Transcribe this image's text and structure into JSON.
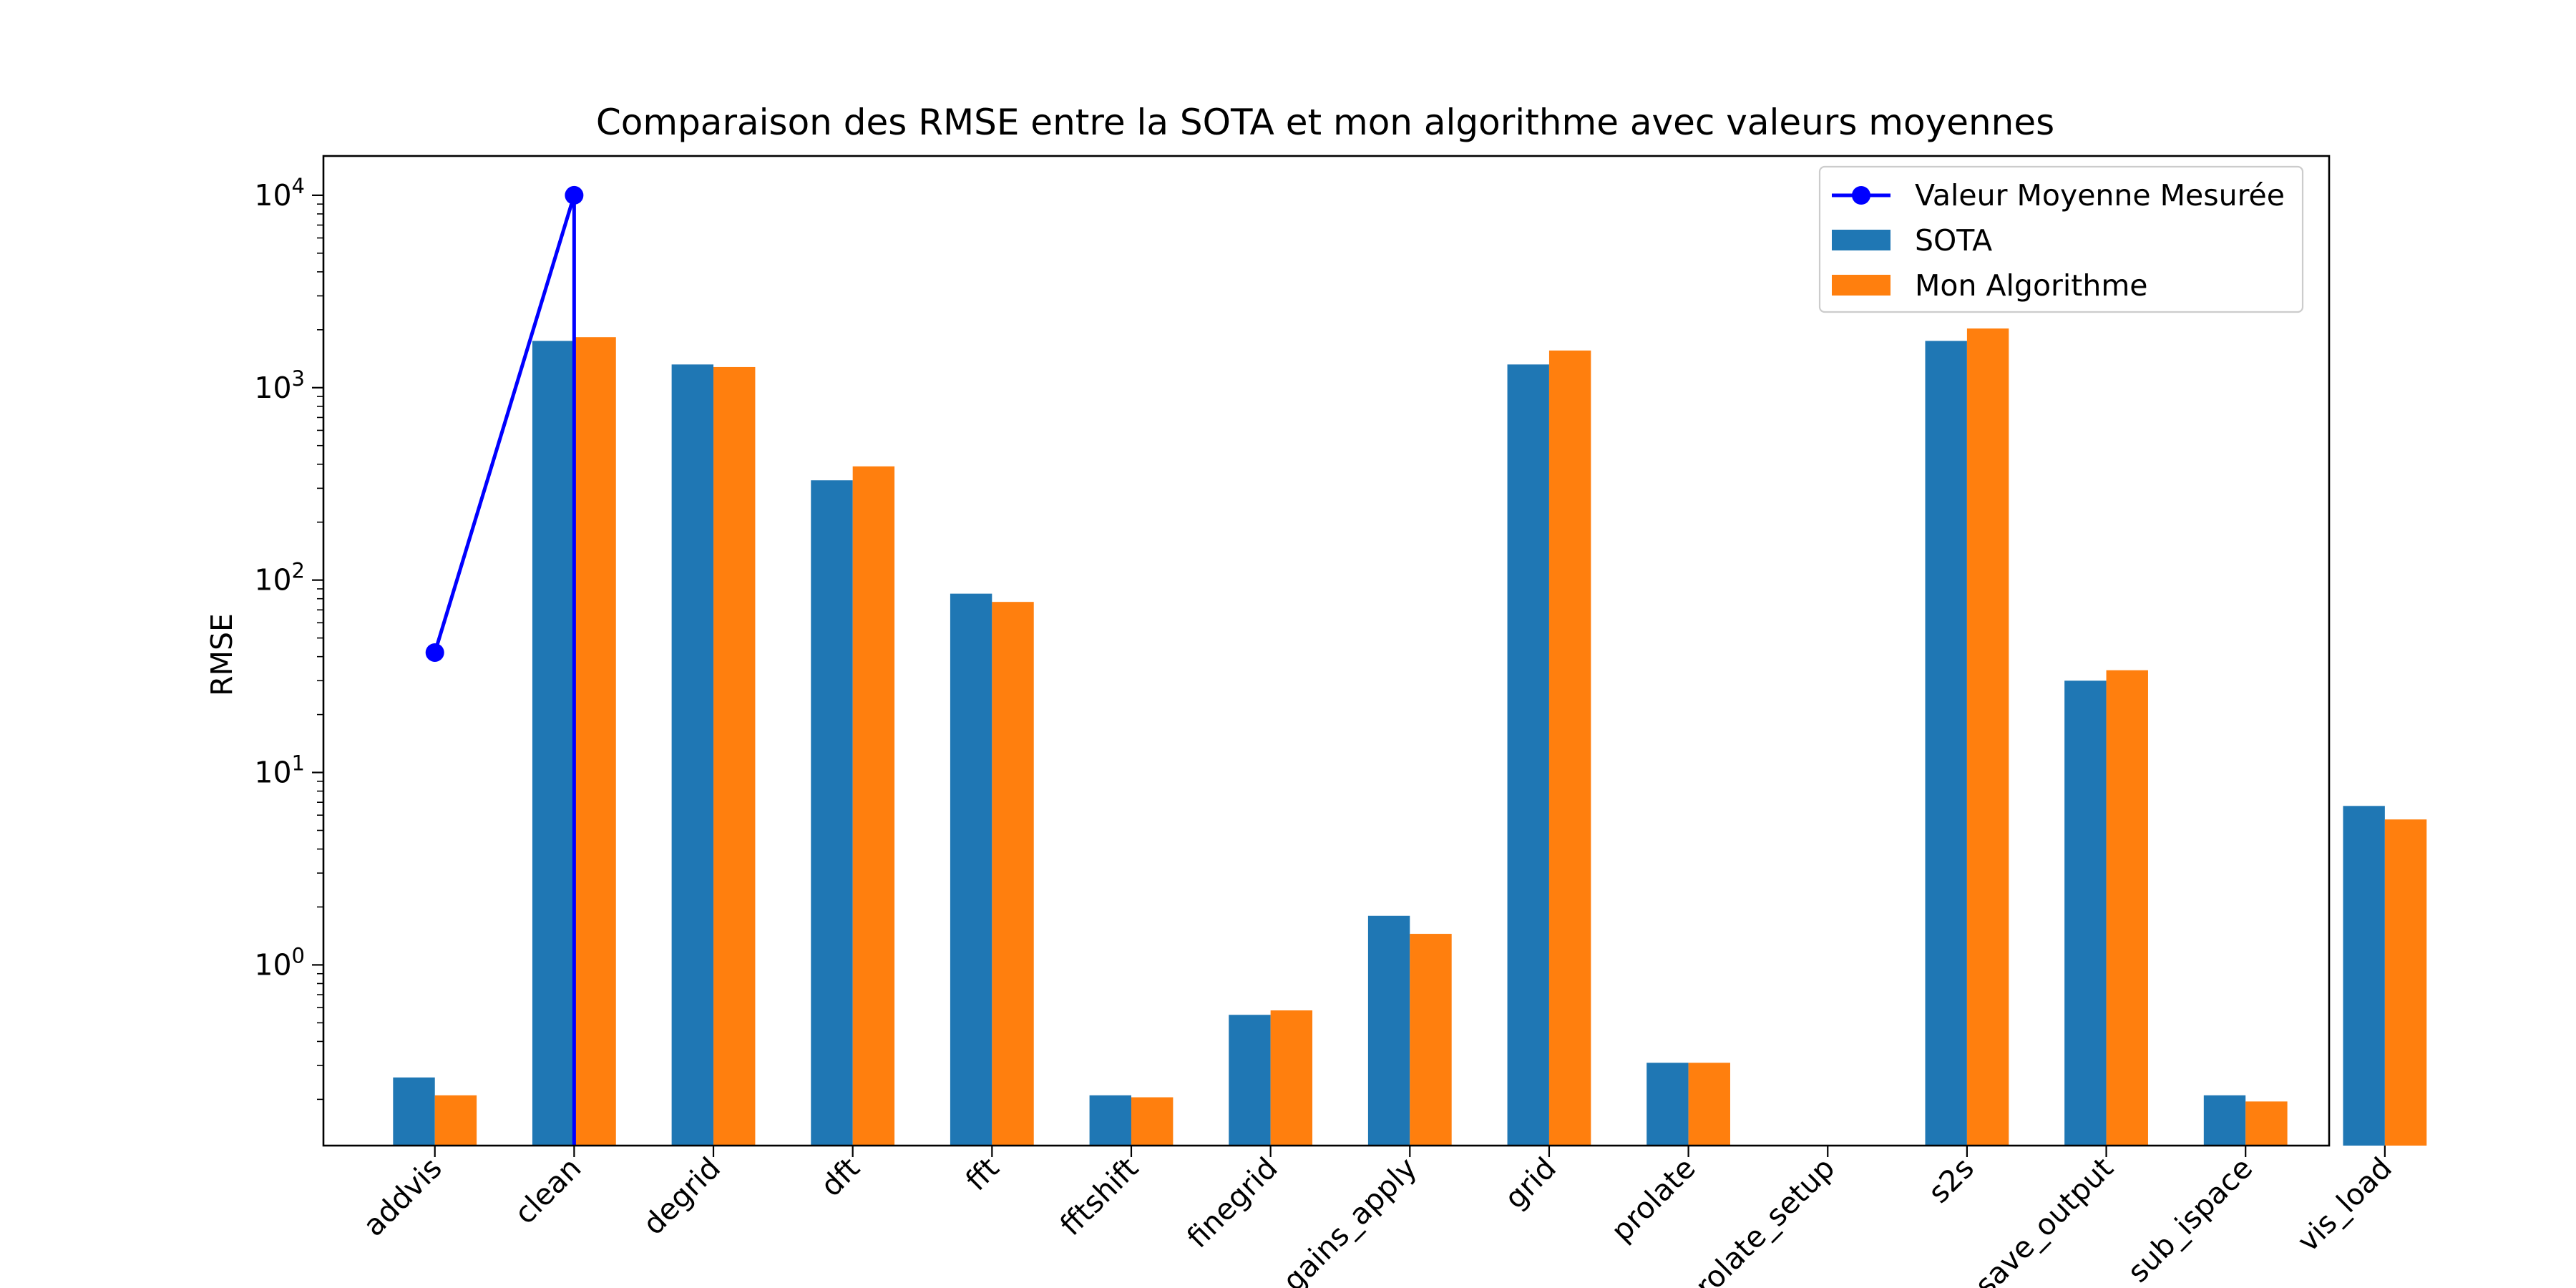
{
  "chart_data": {
    "type": "bar",
    "title": "Comparaison des RMSE entre la SOTA et mon algorithme avec valeurs moyennes",
    "xlabel": "",
    "ylabel": "RMSE",
    "yscale": "log",
    "ylim": [
      0.115,
      16000
    ],
    "yticks": [
      {
        "value": 1,
        "base": "10",
        "exp": "0"
      },
      {
        "value": 10,
        "base": "10",
        "exp": "1"
      },
      {
        "value": 100,
        "base": "10",
        "exp": "2"
      },
      {
        "value": 1000,
        "base": "10",
        "exp": "3"
      },
      {
        "value": 10000,
        "base": "10",
        "exp": "4"
      }
    ],
    "grid": false,
    "legend_position": "top-right",
    "categories": [
      "addvis",
      "clean",
      "degrid",
      "dft",
      "fft",
      "fftshift",
      "finegrid",
      "gains_apply",
      "grid",
      "prolate",
      "prolate_setup",
      "s2s",
      "save_output",
      "sub_ispace",
      "vis_load"
    ],
    "series": [
      {
        "name": "SOTA",
        "kind": "bar",
        "color": "#1f77b4",
        "values": [
          0.26,
          1750,
          1320,
          330,
          85,
          0.21,
          0.55,
          1.8,
          1320,
          0.31,
          null,
          1750,
          30,
          0.21,
          6.7
        ]
      },
      {
        "name": "Mon Algorithme",
        "kind": "bar",
        "color": "#ff7f0e",
        "values": [
          0.21,
          1830,
          1280,
          390,
          77,
          0.205,
          0.58,
          1.45,
          1560,
          0.31,
          null,
          2030,
          34,
          0.195,
          5.7
        ]
      },
      {
        "name": "Valeur Moyenne Mesurée",
        "kind": "line",
        "color": "#0000ff",
        "points": [
          {
            "x": "addvis",
            "y": 42
          },
          {
            "x": "clean",
            "y": 10000
          },
          {
            "x": "clean",
            "y": 0.115
          }
        ]
      }
    ]
  }
}
